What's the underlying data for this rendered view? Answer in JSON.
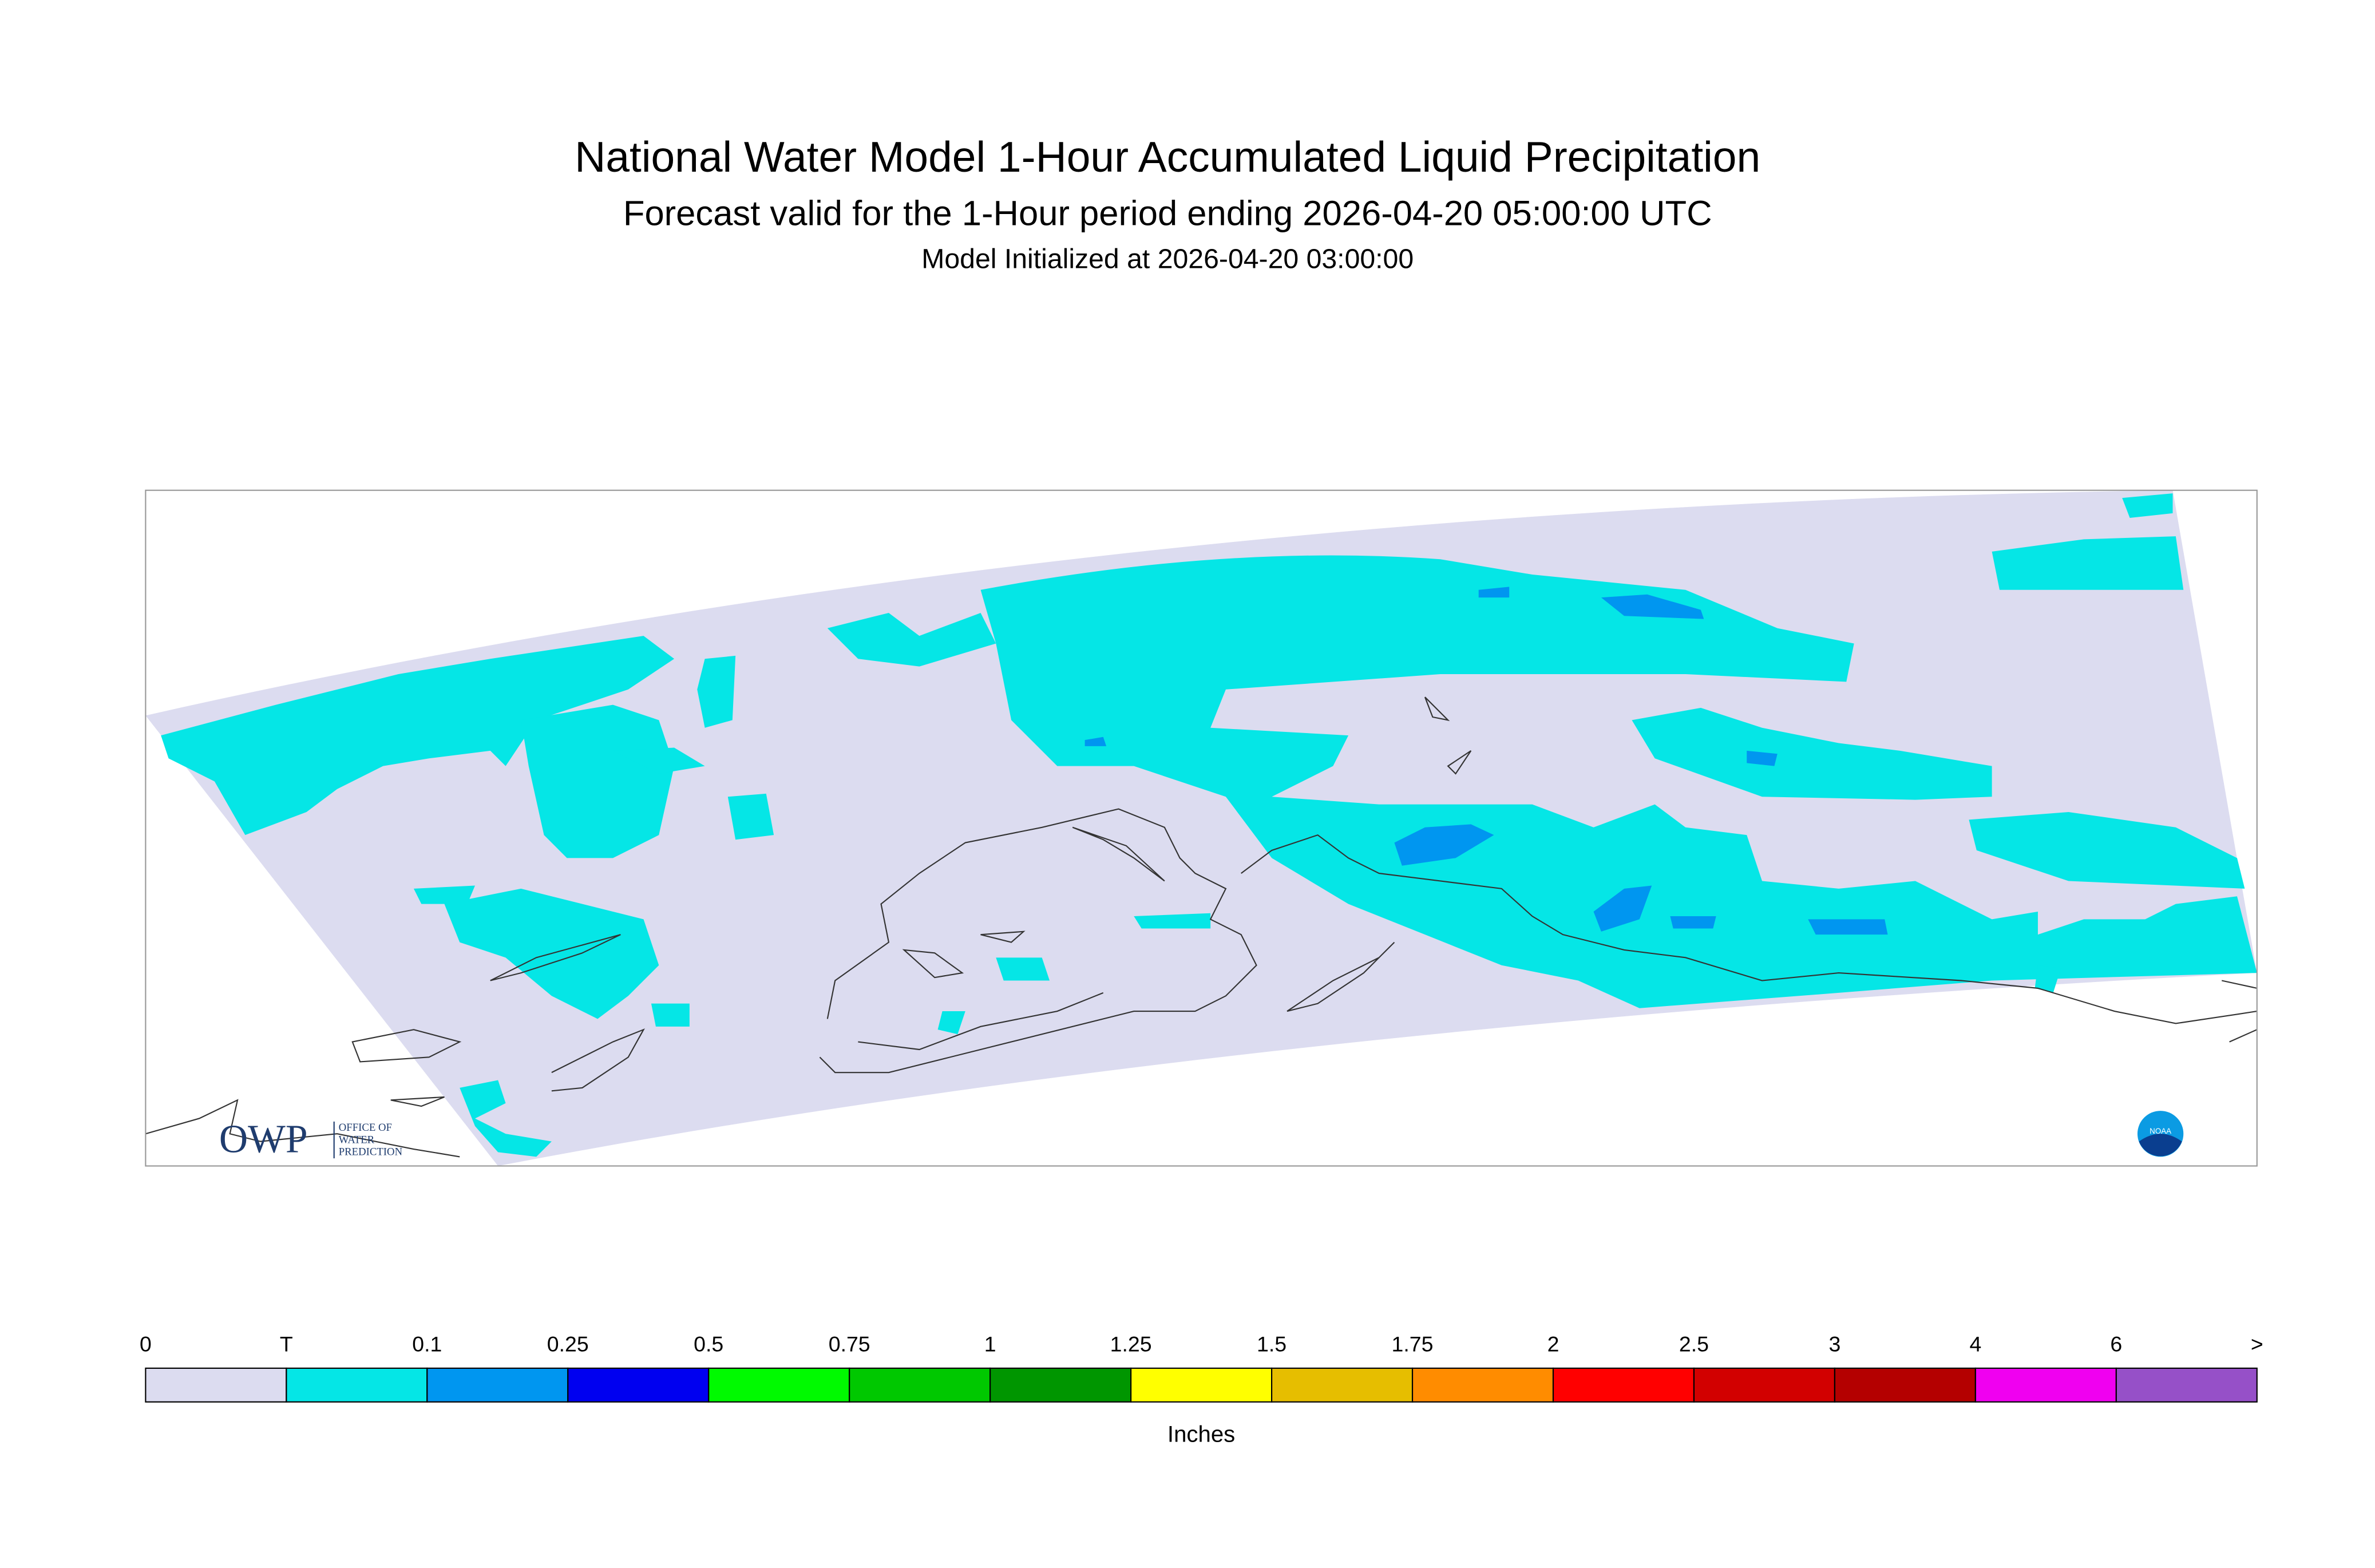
{
  "header": {
    "title": "National Water Model 1-Hour Accumulated Liquid Precipitation",
    "subtitle": "Forecast valid for the 1-Hour period ending 2026-04-20 05:00:00 UTC",
    "initialized": "Model Initialized at 2026-04-20 03:00:00"
  },
  "logos": {
    "owp": "OWP",
    "owp_lines": [
      "OFFICE OF",
      "WATER",
      "PREDICTION"
    ],
    "noaa": "NOAA"
  },
  "legend": {
    "labels": [
      "0",
      "T",
      "0.1",
      "0.25",
      "0.5",
      "0.75",
      "1",
      "1.25",
      "1.5",
      "1.75",
      "2",
      "2.5",
      "3",
      "4",
      "6",
      ">"
    ],
    "colors": [
      "#dcdcf0",
      "#05e6e6",
      "#0096f0",
      "#0000f0",
      "#00fa00",
      "#00c800",
      "#009600",
      "#ffff00",
      "#e6be00",
      "#ff8c00",
      "#ff0000",
      "#d20000",
      "#b40000",
      "#f000f0",
      "#9650c8"
    ],
    "unit": "Inches"
  }
}
